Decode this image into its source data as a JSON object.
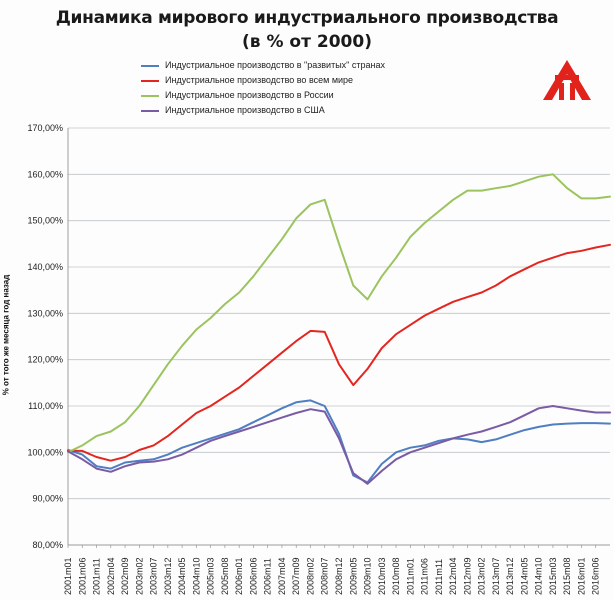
{
  "title_line1": "Динамика мирового индустриального производства",
  "title_line2": "(в % от 2000)",
  "legend": [
    {
      "label": "Индустриальное производство в \"развитых\" странах",
      "color": "#4f7fc2"
    },
    {
      "label": "Индустриальное производство во всем мире",
      "color": "#e3261f"
    },
    {
      "label": "Индустриальное производство в России",
      "color": "#9bc45e"
    },
    {
      "label": "Индустриальное производство в США",
      "color": "#7a5ba6"
    }
  ],
  "logo_icon": "company-logo-icon",
  "chart_data": {
    "type": "line",
    "title": "Динамика мирового индустриального производства (в % от 2000)",
    "ylabel": "% от того же месяца год назад",
    "ylim": [
      80,
      170
    ],
    "yticks": [
      "80,00%",
      "90,00%",
      "100,00%",
      "110,00%",
      "120,00%",
      "130,00%",
      "140,00%",
      "150,00%",
      "160,00%",
      "170,00%"
    ],
    "grid": true,
    "legend_position": "top",
    "x_tick_labels": [
      "2001m01",
      "2001m06",
      "2001m11",
      "2002m04",
      "2002m09",
      "2003m02",
      "2003m07",
      "2003m12",
      "2004m05",
      "2004m10",
      "2005m03",
      "2005m08",
      "2006m01",
      "2006m06",
      "2006m11",
      "2007m04",
      "2007m09",
      "2008m02",
      "2008m07",
      "2008m12",
      "2009m05",
      "2009m10",
      "2010m03",
      "2010m08",
      "2011m01",
      "2011m06",
      "2011m11",
      "2012m04",
      "2012m09",
      "2013m02",
      "2013m07",
      "2013m12",
      "2014m05",
      "2014m10",
      "2015m03",
      "2015m08",
      "2016m01",
      "2016m06"
    ],
    "x": [
      "2001m01",
      "2001m06",
      "2001m11",
      "2002m04",
      "2002m09",
      "2003m02",
      "2003m07",
      "2003m12",
      "2004m05",
      "2004m10",
      "2005m03",
      "2005m08",
      "2006m01",
      "2006m06",
      "2006m11",
      "2007m04",
      "2007m09",
      "2008m02",
      "2008m07",
      "2008m12",
      "2009m05",
      "2009m10",
      "2010m03",
      "2010m08",
      "2011m01",
      "2011m06",
      "2011m11",
      "2012m04",
      "2012m09",
      "2013m02",
      "2013m07",
      "2013m12",
      "2014m05",
      "2014m10",
      "2015m03",
      "2015m08",
      "2016m01",
      "2016m06",
      "2016m08"
    ],
    "series": [
      {
        "name": "Индустриальное производство в \"развитых\" странах",
        "color": "#4f7fc2",
        "values": [
          100.5,
          99.5,
          97.0,
          96.5,
          97.8,
          98.2,
          98.5,
          99.5,
          101.0,
          102.0,
          103.0,
          104.0,
          105.0,
          106.5,
          108.0,
          109.5,
          110.8,
          111.2,
          110.0,
          104.0,
          95.0,
          93.5,
          97.5,
          100.0,
          101.0,
          101.5,
          102.5,
          103.0,
          102.8,
          102.2,
          102.8,
          103.8,
          104.8,
          105.5,
          106.0,
          106.2,
          106.3,
          106.3,
          106.2
        ]
      },
      {
        "name": "Индустриальное производство во всем мире",
        "color": "#e3261f",
        "values": [
          100.3,
          100.3,
          99.0,
          98.2,
          99.0,
          100.5,
          101.5,
          103.5,
          106.0,
          108.5,
          110.0,
          112.0,
          114.0,
          116.5,
          119.0,
          121.5,
          124.0,
          126.2,
          126.0,
          119.0,
          114.5,
          118.0,
          122.5,
          125.5,
          127.5,
          129.5,
          131.0,
          132.5,
          133.5,
          134.5,
          136.0,
          138.0,
          139.5,
          141.0,
          142.0,
          143.0,
          143.5,
          144.2,
          144.8
        ]
      },
      {
        "name": "Индустриальное производство в России",
        "color": "#9bc45e",
        "values": [
          100.0,
          101.5,
          103.5,
          104.5,
          106.5,
          110.0,
          114.5,
          119.0,
          123.0,
          126.5,
          129.0,
          132.0,
          134.5,
          138.0,
          142.0,
          146.0,
          150.5,
          153.5,
          154.5,
          145.0,
          136.0,
          133.0,
          138.0,
          142.0,
          146.5,
          149.5,
          152.0,
          154.5,
          156.5,
          156.5,
          157.0,
          157.5,
          158.5,
          159.5,
          160.0,
          157.0,
          154.8,
          154.8,
          155.2
        ]
      },
      {
        "name": "Индустриальное производство в США",
        "color": "#7a5ba6",
        "values": [
          100.2,
          98.5,
          96.5,
          95.8,
          97.0,
          97.8,
          98.0,
          98.5,
          99.5,
          101.0,
          102.5,
          103.5,
          104.5,
          105.5,
          106.5,
          107.5,
          108.5,
          109.3,
          108.8,
          103.0,
          95.5,
          93.2,
          96.0,
          98.5,
          100.0,
          101.0,
          102.0,
          103.0,
          103.8,
          104.5,
          105.5,
          106.5,
          108.0,
          109.5,
          110.0,
          109.5,
          109.0,
          108.6,
          108.6
        ]
      }
    ]
  }
}
